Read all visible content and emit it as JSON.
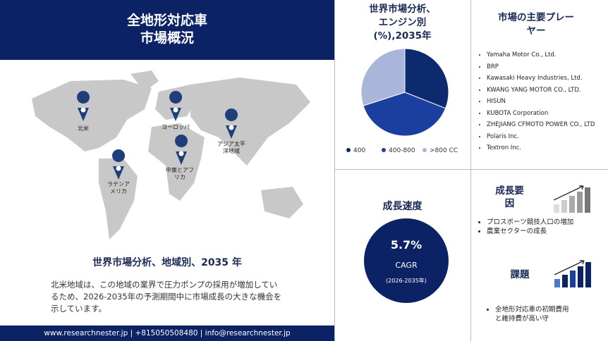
{
  "header": {
    "title": "全地形対応車",
    "subtitle": "市場概況"
  },
  "map": {
    "regions": [
      "北米",
      "ヨーロッパ",
      "アジア太平洋地域",
      "中東とアフリカ",
      "ラテンアメリカ"
    ],
    "caption": "世界市場分析、地域別、2035 年",
    "description": "北米地域は、この地域の業界で圧力ポンプの採用が増加しているため、2026-2035年の予測期間中に市場成長の大きな機会を示しています。"
  },
  "footer": "www.researchnester.jp | +815050508480 | info@researchnester.jp",
  "chart_data": {
    "type": "pie",
    "title": [
      "世界市場分析、",
      "エンジン別",
      "(%),2035年"
    ],
    "categories": [
      "400",
      "400-800",
      ">800 CC"
    ],
    "values": [
      31,
      39,
      30
    ],
    "colors": [
      "#0d2a6e",
      "#1a3f9e",
      "#a9b6d9"
    ]
  },
  "players": {
    "title": "市場の主要プレーヤー",
    "items": [
      "Yamaha Motor Co., Ltd.",
      "BRP",
      "Kawasaki Heavy Industries, Ltd.",
      "KWANG YANG MOTOR CO., LTD.",
      "HISUN",
      "KUBOTA Corporation",
      "ZHEJIANG CFMOTO POWER CO., LTD",
      "Polaris Inc.",
      "Textron Inc."
    ]
  },
  "cagr": {
    "title": "成長速度",
    "value": "5.7%",
    "label": "CAGR",
    "period": "(2026-2035年)"
  },
  "growth": {
    "title": "成長要因",
    "items": [
      "プロスポーツ競技人口の増加",
      "農業セクターの成長"
    ]
  },
  "challenges": {
    "title": "課題",
    "items": [
      "全地形対応車の初期費用と維持費が高い守"
    ]
  }
}
